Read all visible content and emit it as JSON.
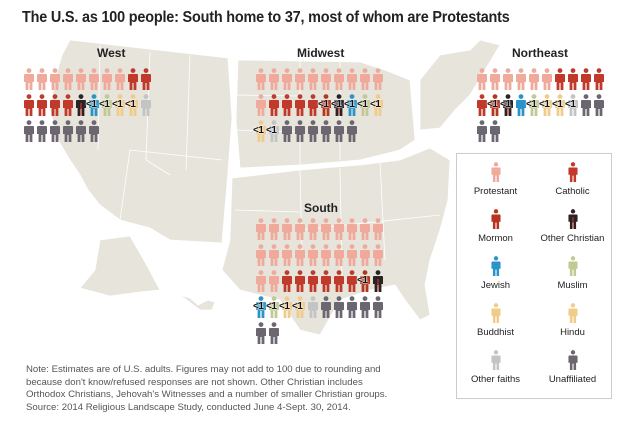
{
  "title": "The U.S. as 100 people: South home to 37, most of whom are Protestants",
  "colors": {
    "map_fill": "#e6e4db",
    "map_border": "#ffffff"
  },
  "chart_data": {
    "type": "table",
    "title": "The U.S. as 100 people: South home to 37, most of whom are Protestants",
    "unit": "people out of 100 U.S. adults (icons); <1 marks share below 1",
    "categories": [
      {
        "key": "protestant",
        "label": "Protestant",
        "color": "#efaa9c"
      },
      {
        "key": "catholic",
        "label": "Catholic",
        "color": "#c0392b"
      },
      {
        "key": "mormon",
        "label": "Mormon",
        "color": "#b5351f"
      },
      {
        "key": "other_christian",
        "label": "Other Christian",
        "color": "#2a2224"
      },
      {
        "key": "jewish",
        "label": "Jewish",
        "color": "#2a94c9"
      },
      {
        "key": "muslim",
        "label": "Muslim",
        "color": "#c2c994"
      },
      {
        "key": "buddhist",
        "label": "Buddhist",
        "color": "#f0cb8a"
      },
      {
        "key": "hindu",
        "label": "Hindu",
        "color": "#f0cb8a"
      },
      {
        "key": "other_faiths",
        "label": "Other faiths",
        "color": "#c4c4c4"
      },
      {
        "key": "unaffiliated",
        "label": "Unaffiliated",
        "color": "#6b6670"
      }
    ],
    "regions": [
      {
        "name": "West",
        "people": [
          {
            "cat": "protestant"
          },
          {
            "cat": "protestant"
          },
          {
            "cat": "protestant"
          },
          {
            "cat": "protestant"
          },
          {
            "cat": "protestant"
          },
          {
            "cat": "protestant"
          },
          {
            "cat": "protestant"
          },
          {
            "cat": "protestant"
          },
          {
            "cat": "catholic"
          },
          {
            "cat": "catholic"
          },
          {
            "cat": "catholic"
          },
          {
            "cat": "catholic"
          },
          {
            "cat": "catholic"
          },
          {
            "cat": "catholic"
          },
          {
            "cat": "other_christian"
          },
          {
            "cat": "jewish",
            "label": "<1"
          },
          {
            "cat": "muslim",
            "label": "<1"
          },
          {
            "cat": "buddhist",
            "label": "<1"
          },
          {
            "cat": "hindu",
            "label": "<1"
          },
          {
            "cat": "other_faiths"
          },
          {
            "cat": "unaffiliated"
          },
          {
            "cat": "unaffiliated"
          },
          {
            "cat": "unaffiliated"
          },
          {
            "cat": "unaffiliated"
          },
          {
            "cat": "unaffiliated"
          },
          {
            "cat": "unaffiliated"
          }
        ]
      },
      {
        "name": "Midwest",
        "people": [
          {
            "cat": "protestant"
          },
          {
            "cat": "protestant"
          },
          {
            "cat": "protestant"
          },
          {
            "cat": "protestant"
          },
          {
            "cat": "protestant"
          },
          {
            "cat": "protestant"
          },
          {
            "cat": "protestant"
          },
          {
            "cat": "protestant"
          },
          {
            "cat": "protestant"
          },
          {
            "cat": "protestant"
          },
          {
            "cat": "protestant"
          },
          {
            "cat": "catholic"
          },
          {
            "cat": "catholic"
          },
          {
            "cat": "catholic"
          },
          {
            "cat": "catholic"
          },
          {
            "cat": "mormon",
            "label": "<1"
          },
          {
            "cat": "other_christian",
            "label": "<1"
          },
          {
            "cat": "jewish",
            "label": "<1"
          },
          {
            "cat": "muslim",
            "label": "<1"
          },
          {
            "cat": "buddhist",
            "label": "<1"
          },
          {
            "cat": "hindu",
            "label": "<1"
          },
          {
            "cat": "other_faiths",
            "label": "<1"
          },
          {
            "cat": "unaffiliated"
          },
          {
            "cat": "unaffiliated"
          },
          {
            "cat": "unaffiliated"
          },
          {
            "cat": "unaffiliated"
          },
          {
            "cat": "unaffiliated"
          },
          {
            "cat": "unaffiliated"
          }
        ]
      },
      {
        "name": "Northeast",
        "people": [
          {
            "cat": "protestant"
          },
          {
            "cat": "protestant"
          },
          {
            "cat": "protestant"
          },
          {
            "cat": "protestant"
          },
          {
            "cat": "protestant"
          },
          {
            "cat": "protestant"
          },
          {
            "cat": "catholic"
          },
          {
            "cat": "catholic"
          },
          {
            "cat": "catholic"
          },
          {
            "cat": "catholic"
          },
          {
            "cat": "catholic"
          },
          {
            "cat": "mormon",
            "label": "<1"
          },
          {
            "cat": "other_christian",
            "label": "<1"
          },
          {
            "cat": "jewish"
          },
          {
            "cat": "muslim",
            "label": "<1"
          },
          {
            "cat": "buddhist",
            "label": "<1"
          },
          {
            "cat": "hindu",
            "label": "<1"
          },
          {
            "cat": "other_faiths",
            "label": "<1"
          },
          {
            "cat": "unaffiliated"
          },
          {
            "cat": "unaffiliated"
          },
          {
            "cat": "unaffiliated"
          },
          {
            "cat": "unaffiliated"
          }
        ]
      },
      {
        "name": "South",
        "people": [
          {
            "cat": "protestant"
          },
          {
            "cat": "protestant"
          },
          {
            "cat": "protestant"
          },
          {
            "cat": "protestant"
          },
          {
            "cat": "protestant"
          },
          {
            "cat": "protestant"
          },
          {
            "cat": "protestant"
          },
          {
            "cat": "protestant"
          },
          {
            "cat": "protestant"
          },
          {
            "cat": "protestant"
          },
          {
            "cat": "protestant"
          },
          {
            "cat": "protestant"
          },
          {
            "cat": "protestant"
          },
          {
            "cat": "protestant"
          },
          {
            "cat": "protestant"
          },
          {
            "cat": "protestant"
          },
          {
            "cat": "protestant"
          },
          {
            "cat": "protestant"
          },
          {
            "cat": "protestant"
          },
          {
            "cat": "protestant"
          },
          {
            "cat": "protestant"
          },
          {
            "cat": "protestant"
          },
          {
            "cat": "catholic"
          },
          {
            "cat": "catholic"
          },
          {
            "cat": "catholic"
          },
          {
            "cat": "catholic"
          },
          {
            "cat": "catholic"
          },
          {
            "cat": "catholic"
          },
          {
            "cat": "mormon",
            "label": "<1"
          },
          {
            "cat": "other_christian"
          },
          {
            "cat": "jewish",
            "label": "<1"
          },
          {
            "cat": "muslim",
            "label": "<1"
          },
          {
            "cat": "buddhist",
            "label": "<1"
          },
          {
            "cat": "hindu",
            "label": "<1"
          },
          {
            "cat": "other_faiths"
          },
          {
            "cat": "unaffiliated"
          },
          {
            "cat": "unaffiliated"
          },
          {
            "cat": "unaffiliated"
          },
          {
            "cat": "unaffiliated"
          },
          {
            "cat": "unaffiliated"
          },
          {
            "cat": "unaffiliated"
          },
          {
            "cat": "unaffiliated"
          }
        ]
      }
    ]
  },
  "note": [
    "Note: Estimates are of U.S. adults. Figures may not add to 100 due to rounding and",
    "because don't know/refused responses are not shown. Other Christian includes",
    "Orthodox Christians, Jehovah's Witnesses and a number of smaller Christian groups.",
    "Source: 2014 Religious Landscape Study, conducted June 4-Sept. 30, 2014."
  ]
}
